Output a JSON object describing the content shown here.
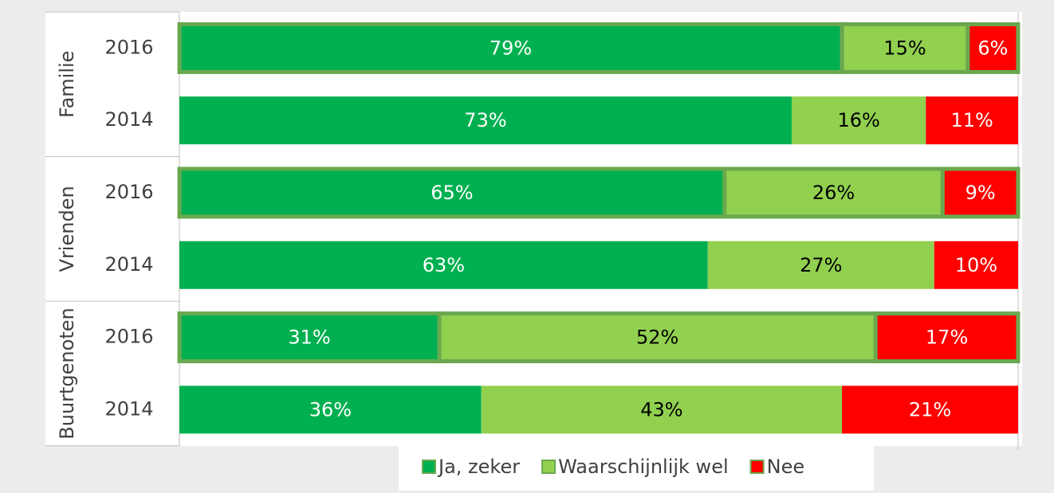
{
  "chart_data": {
    "type": "stacked-bar-horizontal",
    "groups": [
      "Familie",
      "Vrienden",
      "Buurtgenoten"
    ],
    "categories": [
      "2016",
      "2014",
      "2016",
      "2014",
      "2016",
      "2014"
    ],
    "series": [
      {
        "name": "Ja, zeker",
        "color": "#00b050",
        "text_color": "#ffffff",
        "values": [
          79,
          73,
          65,
          63,
          31,
          36
        ],
        "value_labels": [
          "79%",
          "73%",
          "65%",
          "63%",
          "31%",
          "36%"
        ]
      },
      {
        "name": "Waarschijnlijk wel",
        "color": "#92d050",
        "text_color": "#000000",
        "values": [
          15,
          16,
          26,
          27,
          52,
          43
        ],
        "value_labels": [
          "15%",
          "16%",
          "26%",
          "27%",
          "52%",
          "43%"
        ]
      },
      {
        "name": "Nee",
        "color": "#ff0000",
        "text_color": "#ffffff",
        "values": [
          6,
          11,
          9,
          10,
          17,
          21
        ],
        "value_labels": [
          "6%",
          "11%",
          "9%",
          "10%",
          "17%",
          "21%"
        ]
      }
    ],
    "xlim": [
      0,
      100
    ],
    "highlight_color": "#6aa84f",
    "legend": "bottom"
  }
}
